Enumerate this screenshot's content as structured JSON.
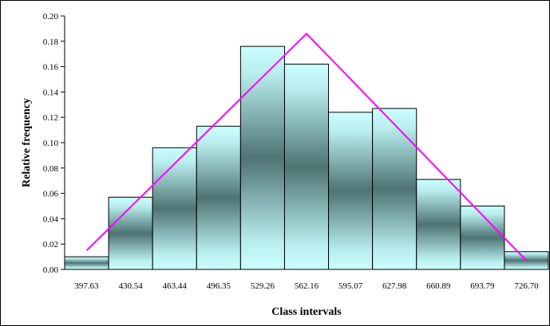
{
  "chart_data": {
    "type": "bar",
    "title": "",
    "xlabel": "Class intervals",
    "ylabel": "Relative frequency",
    "ylim": [
      0,
      0.2
    ],
    "y_ticks": [
      "0.00",
      "0.02",
      "0.04",
      "0.06",
      "0.08",
      "0.10",
      "0.12",
      "0.14",
      "0.16",
      "0.18",
      "0.20"
    ],
    "categories": [
      "397.63",
      "430.54",
      "463.44",
      "496.35",
      "529.26",
      "562.16",
      "595.07",
      "627.98",
      "660.89",
      "693.79",
      "726.70"
    ],
    "values": [
      0.01,
      0.057,
      0.096,
      0.113,
      0.176,
      0.162,
      0.124,
      0.127,
      0.071,
      0.05,
      0.014
    ],
    "overlay_line": {
      "kind": "triangle",
      "color": "#ff00ff",
      "x": [
        397.63,
        562.16,
        726.7
      ],
      "y": [
        0.015,
        0.186,
        0.007
      ]
    },
    "grid": false,
    "legend": "none",
    "bar_style": "gradient pale-cyan to dark-teal"
  }
}
